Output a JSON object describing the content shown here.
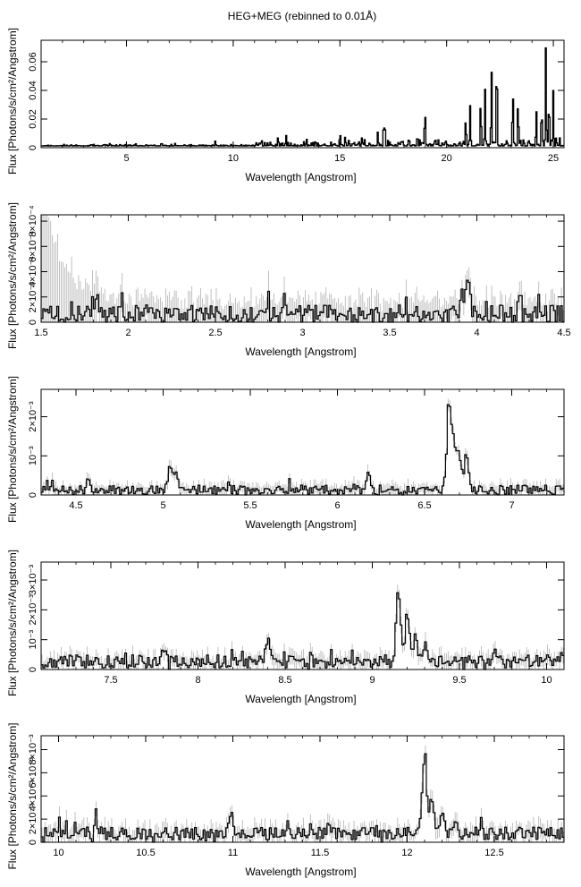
{
  "title": "HEG+MEG (rebinned to 0.01Å)",
  "colors": {
    "spectrum": "#000000",
    "errorbar": "#b0b0b0",
    "frame": "#000000"
  },
  "chart_data": [
    {
      "type": "line",
      "style": "histogram-steps",
      "xlabel": "Wavelength [Angstrom]",
      "ylabel": "Flux [Photons/s/cm²/Angstrom]",
      "xlim": [
        1.0,
        25.5
      ],
      "ylim": [
        0,
        0.075
      ],
      "xticks": [
        5,
        10,
        15,
        20,
        25
      ],
      "xtick_labels": [
        "5",
        "10",
        "15",
        "20",
        "25"
      ],
      "yticks": [
        0,
        0.02,
        0.04,
        0.06
      ],
      "ytick_labels": [
        "0",
        "0.02",
        "0.04",
        "0.06"
      ],
      "baseline": 0.0015,
      "lines": [
        {
          "x": 6.65,
          "y": 0.002
        },
        {
          "x": 9.17,
          "y": 0.003
        },
        {
          "x": 12.1,
          "y": 0.006
        },
        {
          "x": 15.01,
          "y": 0.008
        },
        {
          "x": 15.26,
          "y": 0.005
        },
        {
          "x": 16.02,
          "y": 0.006
        },
        {
          "x": 16.78,
          "y": 0.01
        },
        {
          "x": 17.05,
          "y": 0.015
        },
        {
          "x": 17.1,
          "y": 0.012
        },
        {
          "x": 18.63,
          "y": 0.008
        },
        {
          "x": 18.97,
          "y": 0.012
        },
        {
          "x": 19.0,
          "y": 0.015
        },
        {
          "x": 20.9,
          "y": 0.02
        },
        {
          "x": 21.1,
          "y": 0.025
        },
        {
          "x": 21.6,
          "y": 0.035
        },
        {
          "x": 21.8,
          "y": 0.036
        },
        {
          "x": 22.1,
          "y": 0.054
        },
        {
          "x": 22.35,
          "y": 0.072
        },
        {
          "x": 23.1,
          "y": 0.044
        },
        {
          "x": 23.35,
          "y": 0.034
        },
        {
          "x": 24.2,
          "y": 0.026
        },
        {
          "x": 24.45,
          "y": 0.029
        },
        {
          "x": 24.65,
          "y": 0.065
        },
        {
          "x": 24.8,
          "y": 0.036
        },
        {
          "x": 25.0,
          "y": 0.039
        }
      ],
      "noise_amp": 0.004,
      "err_amp": 0.0,
      "seed": 11
    },
    {
      "type": "line",
      "style": "histogram-steps",
      "xlabel": "Wavelength [Angstrom]",
      "ylabel": "Flux [Photons/s/cm²/Angstrom]",
      "xlim": [
        1.5,
        4.5
      ],
      "ylim": [
        0,
        0.00085
      ],
      "xticks": [
        1.5,
        2,
        2.5,
        3,
        3.5,
        4,
        4.5
      ],
      "xtick_labels": [
        "1.5",
        "2",
        "2.5",
        "3",
        "3.5",
        "4",
        "4.5"
      ],
      "yticks": [
        0,
        0.0002,
        0.0004,
        0.0006,
        0.0008
      ],
      "ytick_labels": [
        "0",
        "2×10⁻⁴",
        "4×10⁻⁴",
        "6×10⁻⁴",
        "8×10⁻⁴"
      ],
      "baseline": 6e-05,
      "lines": [
        {
          "x": 1.81,
          "y": 0.0002
        },
        {
          "x": 3.95,
          "y": 0.0002
        },
        {
          "x": 3.92,
          "y": 0.00015
        },
        {
          "x": 4.25,
          "y": 0.00012
        }
      ],
      "noise_amp": 7e-05,
      "err_amp": 0.00012,
      "err_rise": 0.0009,
      "seed": 3
    },
    {
      "type": "line",
      "style": "histogram-steps",
      "xlabel": "Wavelength [Angstrom]",
      "ylabel": "Flux [Photons/s/cm²/Angstrom]",
      "xlim": [
        4.3,
        7.3
      ],
      "ylim": [
        0,
        0.0027
      ],
      "xticks": [
        4.5,
        5,
        5.5,
        6,
        6.5,
        7
      ],
      "xtick_labels": [
        "4.5",
        "5",
        "5.5",
        "6",
        "6.5",
        "7"
      ],
      "yticks": [
        0,
        0.001,
        0.002
      ],
      "ytick_labels": [
        "0",
        "10⁻³",
        "2×10⁻³"
      ],
      "baseline": 0.00012,
      "lines": [
        {
          "x": 5.04,
          "y": 0.00055
        },
        {
          "x": 5.07,
          "y": 0.0004
        },
        {
          "x": 6.18,
          "y": 0.0004
        },
        {
          "x": 6.64,
          "y": 0.0021
        },
        {
          "x": 6.67,
          "y": 0.0013
        },
        {
          "x": 6.7,
          "y": 0.0009
        },
        {
          "x": 6.74,
          "y": 0.0009
        }
      ],
      "noise_amp": 0.00012,
      "err_amp": 0.00015,
      "seed": 5
    },
    {
      "type": "line",
      "style": "histogram-steps",
      "xlabel": "Wavelength [Angstrom]",
      "ylabel": "Flux [Photons/s/cm²/Angstrom]",
      "xlim": [
        7.1,
        10.1
      ],
      "ylim": [
        0,
        0.0036
      ],
      "xticks": [
        7.5,
        8,
        8.5,
        9,
        9.5,
        10
      ],
      "xtick_labels": [
        "7.5",
        "8",
        "8.5",
        "9",
        "9.5",
        "10"
      ],
      "yticks": [
        0,
        0.001,
        0.002,
        0.003
      ],
      "ytick_labels": [
        "0",
        "10⁻³",
        "2×10⁻³",
        "3×10⁻³"
      ],
      "baseline": 0.00025,
      "lines": [
        {
          "x": 7.8,
          "y": 0.0004
        },
        {
          "x": 8.4,
          "y": 0.0007
        },
        {
          "x": 9.15,
          "y": 0.0024
        },
        {
          "x": 9.2,
          "y": 0.0016
        },
        {
          "x": 9.25,
          "y": 0.0008
        },
        {
          "x": 9.31,
          "y": 0.0004
        },
        {
          "x": 9.7,
          "y": 0.0003
        }
      ],
      "noise_amp": 0.00022,
      "err_amp": 0.00025,
      "seed": 9
    },
    {
      "type": "line",
      "style": "histogram-steps",
      "xlabel": "Wavelength [Angstrom]",
      "ylabel": "Flux [Photons/s/cm²/Angstrom]",
      "xlim": [
        9.9,
        12.9
      ],
      "ylim": [
        0,
        0.0092
      ],
      "xticks": [
        10,
        10.5,
        11,
        11.5,
        12,
        12.5
      ],
      "xtick_labels": [
        "10",
        "10.5",
        "11",
        "11.5",
        "12",
        "12.5"
      ],
      "yticks": [
        0,
        0.002,
        0.004,
        0.006,
        0.008
      ],
      "ytick_labels": [
        "0",
        "2×10⁻³",
        "4×10⁻³",
        "6×10⁻³",
        "8×10⁻³"
      ],
      "baseline": 0.0007,
      "lines": [
        {
          "x": 10.22,
          "y": 0.0008
        },
        {
          "x": 10.99,
          "y": 0.0019
        },
        {
          "x": 11.55,
          "y": 0.0009
        },
        {
          "x": 12.1,
          "y": 0.0069
        },
        {
          "x": 12.14,
          "y": 0.0035
        },
        {
          "x": 12.2,
          "y": 0.0015
        },
        {
          "x": 12.28,
          "y": 0.001
        }
      ],
      "noise_amp": 0.00055,
      "err_amp": 0.0007,
      "seed": 13
    }
  ]
}
